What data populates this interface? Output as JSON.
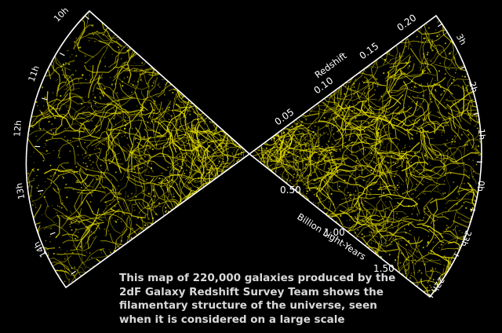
{
  "colors": {
    "background": "#000000",
    "galaxies": "#e8e000",
    "outline": "#ffffff"
  },
  "left_wedge": {
    "hour_labels": [
      "10h",
      "11h",
      "12h",
      "13h",
      "14h"
    ]
  },
  "right_wedge": {
    "hour_labels": [
      "3h",
      "2h",
      "1h",
      "0h",
      "23h",
      "22h"
    ],
    "redshift_axis": {
      "title": "Redshift",
      "ticks": [
        "0.05",
        "0.10",
        "0.15",
        "0.20"
      ]
    },
    "distance_axis": {
      "title": "Billion Light-Years",
      "ticks": [
        "0.50",
        "1.00",
        "1.50"
      ]
    }
  },
  "caption": {
    "line1": "This map of 220,000 galaxies produced by the",
    "line2": "2dF Galaxy Redshift Survey Team shows the",
    "line3": "filamentary structure of the universe, seen",
    "line4": "when it is considered on a large scale"
  }
}
